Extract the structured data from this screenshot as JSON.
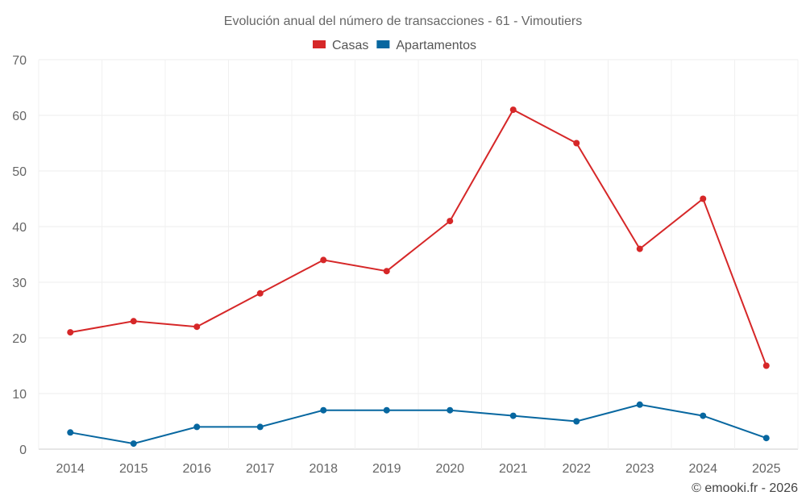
{
  "chart_data": {
    "type": "line",
    "title": "Evolución anual del número de transacciones - 61 - Vimoutiers",
    "categories": [
      "2014",
      "2015",
      "2016",
      "2017",
      "2018",
      "2019",
      "2020",
      "2021",
      "2022",
      "2023",
      "2024",
      "2025"
    ],
    "series": [
      {
        "name": "Casas",
        "color": "#d62728",
        "values": [
          21,
          23,
          22,
          28,
          34,
          32,
          41,
          61,
          55,
          36,
          45,
          15
        ]
      },
      {
        "name": "Apartamentos",
        "color": "#0767a0",
        "values": [
          3,
          1,
          4,
          4,
          7,
          7,
          7,
          6,
          5,
          8,
          6,
          2
        ]
      }
    ],
    "ylim": [
      0,
      70
    ],
    "yticks": [
      0,
      10,
      20,
      30,
      40,
      50,
      60,
      70
    ],
    "xlabel": "",
    "ylabel": "",
    "grid": true,
    "legend": "top-center"
  },
  "credit": "© emooki.fr - 2026"
}
